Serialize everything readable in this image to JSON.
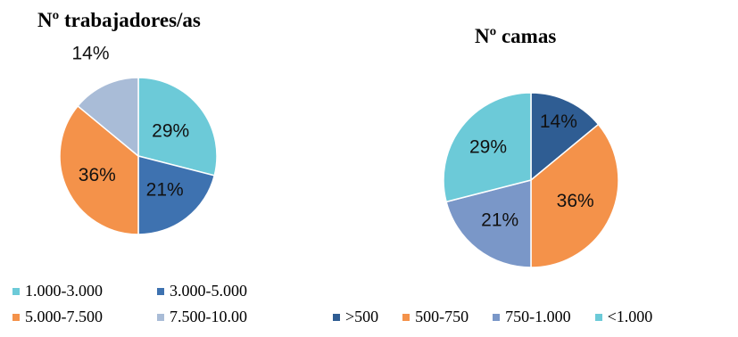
{
  "chart_data": [
    {
      "type": "pie",
      "title": "Nº trabajadores/as",
      "categories": [
        "1.000-3.000",
        "3.000-5.000",
        "5.000-7.500",
        "7.500-10.00"
      ],
      "values": [
        29,
        21,
        36,
        14
      ],
      "labels": [
        "29%",
        "21%",
        "36%",
        "14%"
      ],
      "colors": [
        "#6ccad8",
        "#3e72b0",
        "#f4924a",
        "#a9bcd7"
      ],
      "legend_position": "bottom"
    },
    {
      "type": "pie",
      "title": "Nº camas",
      "categories": [
        ">500",
        "500-750",
        "750-1.000",
        "<1.000"
      ],
      "values": [
        14,
        36,
        21,
        29
      ],
      "labels": [
        "14%",
        "36%",
        "21%",
        "29%"
      ],
      "colors": [
        "#2f5d93",
        "#f4924a",
        "#7a97c8",
        "#6ccad8"
      ],
      "legend_position": "bottom"
    }
  ]
}
